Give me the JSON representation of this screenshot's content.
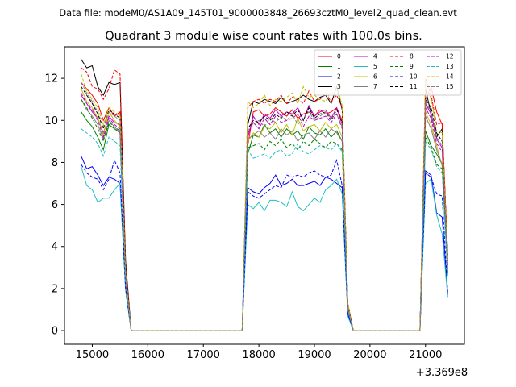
{
  "figure": {
    "suptitle": "Data file: modeM0/AS1A09_145T01_9000003848_26693cztM0_level2_quad_clean.evt"
  },
  "chart_data": {
    "type": "line",
    "title": "Quadrant 3 module wise count rates with 100.0s bins.",
    "xlabel": "",
    "ylabel": "",
    "x_offset_label": "+3.369e8",
    "xlim": [
      14500,
      21700
    ],
    "ylim": [
      -0.65,
      13.5
    ],
    "xticks": [
      15000,
      16000,
      17000,
      18000,
      19000,
      20000,
      21000
    ],
    "yticks": [
      0,
      2,
      4,
      6,
      8,
      10,
      12
    ],
    "grid": false,
    "legend_position": "top-right",
    "x": [
      14800,
      14900,
      15000,
      15100,
      15200,
      15300,
      15400,
      15500,
      15600,
      15700,
      15800,
      15900,
      16000,
      16100,
      16200,
      16300,
      16400,
      16500,
      16600,
      16700,
      16800,
      16900,
      17000,
      17100,
      17200,
      17300,
      17400,
      17500,
      17600,
      17700,
      17800,
      17900,
      18000,
      18100,
      18200,
      18300,
      18400,
      18500,
      18600,
      18700,
      18800,
      18900,
      19000,
      19100,
      19200,
      19300,
      19400,
      19500,
      19600,
      19700,
      19800,
      19900,
      20000,
      20100,
      20200,
      20300,
      20400,
      20500,
      20600,
      20700,
      20800,
      20900,
      21000,
      21100,
      21200,
      21300,
      21400
    ],
    "series": [
      {
        "name": "0",
        "color": "#ff0000",
        "dash": "solid",
        "values": [
          11.8,
          11.5,
          11.2,
          10.8,
          10.0,
          10.6,
          10.2,
          10.4,
          2.5,
          0,
          0,
          0,
          0,
          0,
          0,
          0,
          0,
          0,
          0,
          0,
          0,
          0,
          0,
          0,
          0,
          0,
          0,
          0,
          0,
          0,
          8.8,
          10.4,
          10.5,
          10.2,
          10.3,
          10.6,
          10.4,
          10.2,
          10.5,
          10.1,
          10.3,
          10.4,
          10.2,
          10.5,
          10.3,
          10.4,
          10.6,
          10.0,
          1.2,
          0,
          0,
          0,
          0,
          0,
          0,
          0,
          0,
          0,
          0,
          0,
          0,
          0,
          11.0,
          11.6,
          10.4,
          9.8,
          3.4
        ]
      },
      {
        "name": "1",
        "color": "#008000",
        "dash": "solid",
        "values": [
          10.4,
          10.0,
          9.7,
          9.2,
          8.6,
          9.8,
          9.6,
          9.4,
          2.4,
          0,
          0,
          0,
          0,
          0,
          0,
          0,
          0,
          0,
          0,
          0,
          0,
          0,
          0,
          0,
          0,
          0,
          0,
          0,
          0,
          0,
          8.4,
          9.3,
          9.2,
          9.8,
          9.4,
          9.6,
          9.2,
          9.6,
          9.3,
          9.5,
          9.1,
          9.7,
          9.4,
          9.3,
          9.6,
          9.2,
          9.5,
          9.0,
          1.1,
          0,
          0,
          0,
          0,
          0,
          0,
          0,
          0,
          0,
          0,
          0,
          0,
          0,
          9.5,
          8.8,
          8.4,
          7.9,
          2.7
        ]
      },
      {
        "name": "2",
        "color": "#0000ff",
        "dash": "solid",
        "values": [
          8.3,
          7.7,
          7.8,
          7.4,
          6.9,
          7.3,
          7.2,
          7.0,
          2.0,
          0,
          0,
          0,
          0,
          0,
          0,
          0,
          0,
          0,
          0,
          0,
          0,
          0,
          0,
          0,
          0,
          0,
          0,
          0,
          0,
          0,
          6.8,
          6.6,
          6.5,
          6.8,
          7.0,
          7.4,
          6.9,
          7.0,
          7.2,
          6.9,
          6.9,
          7.0,
          7.1,
          6.9,
          7.3,
          7.2,
          7.0,
          6.8,
          0.8,
          0,
          0,
          0,
          0,
          0,
          0,
          0,
          0,
          0,
          0,
          0,
          0,
          0,
          7.6,
          7.4,
          5.6,
          5.4,
          1.7
        ]
      },
      {
        "name": "3",
        "color": "#000000",
        "dash": "solid",
        "values": [
          12.9,
          12.5,
          12.6,
          11.6,
          11.2,
          11.8,
          11.7,
          11.8,
          3.3,
          0,
          0,
          0,
          0,
          0,
          0,
          0,
          0,
          0,
          0,
          0,
          0,
          0,
          0,
          0,
          0,
          0,
          0,
          0,
          0,
          0,
          9.8,
          10.9,
          10.8,
          11.0,
          10.9,
          10.8,
          11.1,
          10.8,
          10.9,
          11.0,
          11.2,
          11.0,
          10.9,
          11.1,
          11.2,
          10.8,
          11.6,
          10.5,
          1.3,
          0,
          0,
          0,
          0,
          0,
          0,
          0,
          0,
          0,
          0,
          0,
          0,
          0,
          11.5,
          10.3,
          9.2,
          9.6,
          3.6
        ]
      },
      {
        "name": "4",
        "color": "#c000c0",
        "dash": "solid",
        "values": [
          11.2,
          10.8,
          10.4,
          10.1,
          9.4,
          10.2,
          9.9,
          9.8,
          2.6,
          0,
          0,
          0,
          0,
          0,
          0,
          0,
          0,
          0,
          0,
          0,
          0,
          0,
          0,
          0,
          0,
          0,
          0,
          0,
          0,
          0,
          9.2,
          10.2,
          9.8,
          10.3,
          10.1,
          10.5,
          10.2,
          10.4,
          10.3,
          10.6,
          10.0,
          10.7,
          10.2,
          10.4,
          10.5,
          10.1,
          10.6,
          9.8,
          1.1,
          0,
          0,
          0,
          0,
          0,
          0,
          0,
          0,
          0,
          0,
          0,
          0,
          0,
          10.8,
          10.3,
          9.1,
          8.7,
          3.2
        ]
      },
      {
        "name": "5",
        "color": "#20c0c0",
        "dash": "solid",
        "values": [
          7.8,
          6.9,
          6.7,
          6.1,
          6.3,
          6.3,
          6.7,
          7.0,
          1.9,
          0,
          0,
          0,
          0,
          0,
          0,
          0,
          0,
          0,
          0,
          0,
          0,
          0,
          0,
          0,
          0,
          0,
          0,
          0,
          0,
          0,
          6.0,
          5.8,
          6.1,
          5.7,
          6.2,
          6.2,
          6.1,
          5.9,
          6.6,
          5.9,
          5.7,
          6.0,
          6.3,
          6.1,
          6.7,
          6.9,
          7.2,
          6.5,
          0.7,
          0,
          0,
          0,
          0,
          0,
          0,
          0,
          0,
          0,
          0,
          0,
          0,
          0,
          7.0,
          7.2,
          5.5,
          4.6,
          1.6
        ]
      },
      {
        "name": "6",
        "color": "#c0c000",
        "dash": "solid",
        "values": [
          11.5,
          10.9,
          10.6,
          10.1,
          9.3,
          10.4,
          10.0,
          9.7,
          2.4,
          0,
          0,
          0,
          0,
          0,
          0,
          0,
          0,
          0,
          0,
          0,
          0,
          0,
          0,
          0,
          0,
          0,
          0,
          0,
          0,
          0,
          9.0,
          9.4,
          9.2,
          9.7,
          9.6,
          9.9,
          9.4,
          9.8,
          9.3,
          10.1,
          9.5,
          9.7,
          9.8,
          9.5,
          9.9,
          9.6,
          9.8,
          9.2,
          1.0,
          0,
          0,
          0,
          0,
          0,
          0,
          0,
          0,
          0,
          0,
          0,
          0,
          0,
          10.4,
          9.8,
          8.8,
          7.8,
          3.0
        ]
      },
      {
        "name": "7",
        "color": "#808080",
        "dash": "solid",
        "values": [
          11.0,
          10.5,
          10.2,
          9.8,
          9.1,
          10.0,
          9.7,
          9.4,
          2.3,
          0,
          0,
          0,
          0,
          0,
          0,
          0,
          0,
          0,
          0,
          0,
          0,
          0,
          0,
          0,
          0,
          0,
          0,
          0,
          0,
          0,
          9.1,
          9.3,
          9.5,
          9.2,
          9.4,
          9.1,
          9.6,
          9.3,
          9.5,
          9.0,
          9.3,
          9.4,
          9.1,
          9.5,
          9.2,
          9.6,
          9.4,
          9.0,
          1.0,
          0,
          0,
          0,
          0,
          0,
          0,
          0,
          0,
          0,
          0,
          0,
          0,
          0,
          10.2,
          9.6,
          8.6,
          7.9,
          2.9
        ]
      },
      {
        "name": "8",
        "color": "#ff0000",
        "dash": "dashed",
        "values": [
          12.5,
          12.3,
          11.6,
          11.5,
          11.0,
          11.5,
          12.4,
          12.2,
          3.1,
          0,
          0,
          0,
          0,
          0,
          0,
          0,
          0,
          0,
          0,
          0,
          0,
          0,
          0,
          0,
          0,
          0,
          0,
          0,
          0,
          0,
          10.6,
          10.9,
          11.0,
          10.8,
          11.0,
          10.9,
          11.2,
          10.8,
          11.1,
          11.0,
          10.8,
          11.4,
          10.9,
          11.0,
          11.3,
          10.9,
          11.2,
          10.6,
          1.2,
          0,
          0,
          0,
          0,
          0,
          0,
          0,
          0,
          0,
          0,
          0,
          0,
          0,
          12.0,
          11.2,
          9.8,
          9.9,
          3.5
        ]
      },
      {
        "name": "9",
        "color": "#008000",
        "dash": "dashed",
        "values": [
          11.0,
          10.6,
          10.1,
          9.6,
          9.0,
          9.9,
          9.7,
          9.5,
          2.5,
          0,
          0,
          0,
          0,
          0,
          0,
          0,
          0,
          0,
          0,
          0,
          0,
          0,
          0,
          0,
          0,
          0,
          0,
          0,
          0,
          0,
          8.7,
          8.8,
          8.9,
          8.6,
          9.0,
          8.8,
          9.1,
          8.7,
          8.9,
          8.6,
          9.0,
          8.8,
          9.1,
          8.9,
          8.7,
          9.0,
          8.9,
          8.6,
          1.0,
          0,
          0,
          0,
          0,
          0,
          0,
          0,
          0,
          0,
          0,
          0,
          0,
          0,
          9.2,
          8.7,
          7.9,
          7.7,
          2.8
        ]
      },
      {
        "name": "10",
        "color": "#0000ff",
        "dash": "dashed",
        "values": [
          7.9,
          7.5,
          7.3,
          7.2,
          6.7,
          7.2,
          8.1,
          7.5,
          2.0,
          0,
          0,
          0,
          0,
          0,
          0,
          0,
          0,
          0,
          0,
          0,
          0,
          0,
          0,
          0,
          0,
          0,
          0,
          0,
          0,
          0,
          6.6,
          6.4,
          6.3,
          6.5,
          6.7,
          6.9,
          6.8,
          7.4,
          7.3,
          7.4,
          7.3,
          7.5,
          7.6,
          7.4,
          7.3,
          7.4,
          8.1,
          6.9,
          0.8,
          0,
          0,
          0,
          0,
          0,
          0,
          0,
          0,
          0,
          0,
          0,
          0,
          0,
          7.5,
          7.3,
          6.5,
          6.4,
          1.8
        ]
      },
      {
        "name": "11",
        "color": "#000000",
        "dash": "dashed",
        "values": [
          11.6,
          11.2,
          10.8,
          10.3,
          9.6,
          10.5,
          10.3,
          10.1,
          2.7,
          0,
          0,
          0,
          0,
          0,
          0,
          0,
          0,
          0,
          0,
          0,
          0,
          0,
          0,
          0,
          0,
          0,
          0,
          0,
          0,
          0,
          9.6,
          10.0,
          9.9,
          10.2,
          10.0,
          10.3,
          10.1,
          10.4,
          10.2,
          10.5,
          10.0,
          10.6,
          10.1,
          10.3,
          10.4,
          10.0,
          10.5,
          9.9,
          1.1,
          0,
          0,
          0,
          0,
          0,
          0,
          0,
          0,
          0,
          0,
          0,
          0,
          0,
          11.0,
          10.6,
          9.4,
          9.0,
          3.3
        ]
      },
      {
        "name": "12",
        "color": "#c000c0",
        "dash": "dashed",
        "values": [
          11.3,
          10.8,
          10.5,
          10.0,
          9.2,
          10.1,
          9.8,
          9.6,
          2.5,
          0,
          0,
          0,
          0,
          0,
          0,
          0,
          0,
          0,
          0,
          0,
          0,
          0,
          0,
          0,
          0,
          0,
          0,
          0,
          0,
          0,
          9.4,
          9.9,
          9.6,
          10.1,
          9.8,
          10.2,
          9.9,
          10.0,
          10.1,
          10.3,
          9.7,
          10.2,
          10.0,
          10.1,
          10.2,
          9.9,
          10.3,
          9.6,
          1.1,
          0,
          0,
          0,
          0,
          0,
          0,
          0,
          0,
          0,
          0,
          0,
          0,
          0,
          10.6,
          10.1,
          8.9,
          8.5,
          3.1
        ]
      },
      {
        "name": "13",
        "color": "#20c0c0",
        "dash": "dashed",
        "values": [
          9.6,
          9.4,
          9.2,
          8.9,
          8.3,
          9.2,
          9.0,
          8.8,
          2.3,
          0,
          0,
          0,
          0,
          0,
          0,
          0,
          0,
          0,
          0,
          0,
          0,
          0,
          0,
          0,
          0,
          0,
          0,
          0,
          0,
          0,
          8.6,
          8.2,
          8.3,
          8.4,
          8.2,
          8.5,
          8.6,
          8.3,
          8.4,
          8.9,
          8.5,
          8.4,
          8.6,
          8.8,
          8.7,
          8.6,
          8.9,
          8.5,
          1.0,
          0,
          0,
          0,
          0,
          0,
          0,
          0,
          0,
          0,
          0,
          0,
          0,
          0,
          9.0,
          8.6,
          7.8,
          7.5,
          2.6
        ]
      },
      {
        "name": "14",
        "color": "#c0c000",
        "dash": "dashed",
        "values": [
          12.2,
          11.4,
          11.0,
          10.6,
          9.8,
          10.6,
          10.4,
          10.2,
          2.7,
          0,
          0,
          0,
          0,
          0,
          0,
          0,
          0,
          0,
          0,
          0,
          0,
          0,
          0,
          0,
          0,
          0,
          0,
          0,
          0,
          0,
          10.9,
          10.6,
          10.8,
          11.2,
          10.7,
          11.0,
          10.9,
          11.1,
          11.3,
          10.8,
          11.6,
          11.1,
          11.2,
          11.0,
          10.9,
          11.4,
          11.7,
          10.7,
          1.3,
          0,
          0,
          0,
          0,
          0,
          0,
          0,
          0,
          0,
          0,
          0,
          0,
          0,
          11.9,
          11.0,
          9.5,
          9.4,
          3.4
        ]
      },
      {
        "name": "15",
        "color": "#808080",
        "dash": "dashed",
        "values": [
          11.8,
          11.3,
          10.9,
          10.4,
          9.7,
          10.4,
          10.2,
          10.0,
          2.6,
          0,
          0,
          0,
          0,
          0,
          0,
          0,
          0,
          0,
          0,
          0,
          0,
          0,
          0,
          0,
          0,
          0,
          0,
          0,
          0,
          0,
          9.5,
          9.8,
          10.0,
          9.7,
          10.1,
          9.9,
          10.2,
          10.0,
          10.3,
          9.8,
          10.1,
          10.4,
          10.0,
          10.2,
          10.4,
          10.1,
          10.3,
          9.7,
          1.1,
          0,
          0,
          0,
          0,
          0,
          0,
          0,
          0,
          0,
          0,
          0,
          0,
          0,
          10.9,
          10.4,
          9.2,
          8.8,
          3.2
        ]
      }
    ]
  }
}
